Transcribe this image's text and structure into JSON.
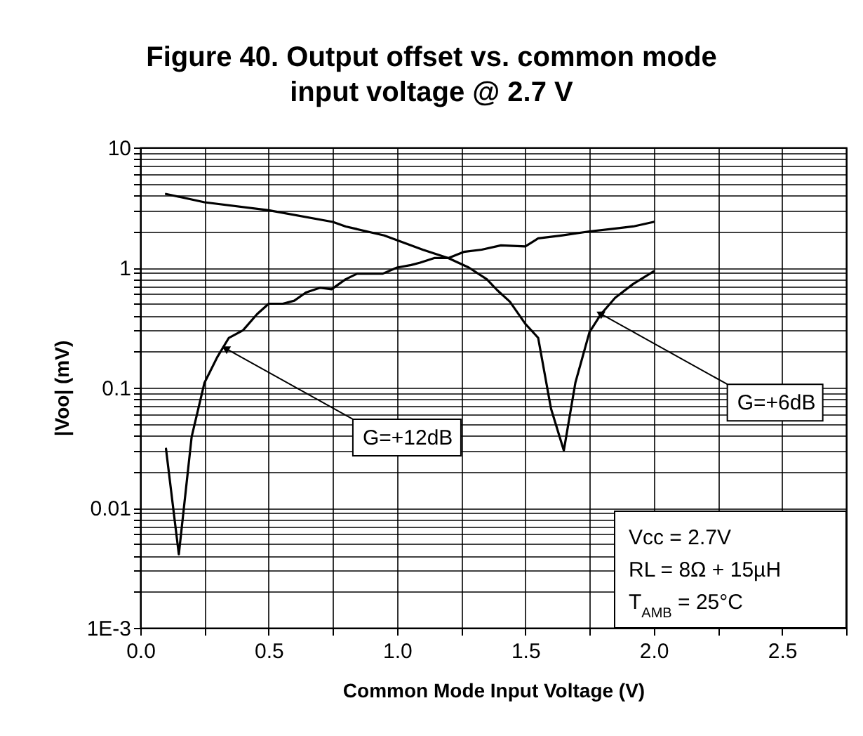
{
  "chart_data": {
    "type": "line",
    "title": "Figure 40. Output offset vs. common mode input voltage @ 2.7 V",
    "xlabel": "Common Mode Input Voltage (V)",
    "ylabel": "|Voo| (mV)",
    "series": [
      {
        "color": "#000000",
        "x": [
          0.1,
          0.25,
          0.5,
          0.75,
          0.8,
          0.95,
          1.1,
          1.2,
          1.28,
          1.35,
          1.39,
          1.44,
          1.5,
          1.55,
          1.6,
          1.65,
          1.695,
          1.75,
          1.795,
          1.85,
          1.92,
          2.0
        ],
        "values": [
          4.1,
          3.5,
          3.0,
          2.4,
          2.2,
          1.85,
          1.41,
          1.2,
          1.0,
          0.8,
          0.65,
          0.52,
          0.34,
          0.26,
          0.067,
          0.03,
          0.11,
          0.29,
          0.41,
          0.56,
          0.73,
          0.93
        ]
      },
      {
        "color": "#000000",
        "x": [
          0.1,
          0.15,
          0.2,
          0.25,
          0.3,
          0.345,
          0.4,
          0.455,
          0.5,
          0.555,
          0.6,
          0.645,
          0.7,
          0.745,
          0.8,
          0.845,
          0.945,
          1.0,
          1.055,
          1.09,
          1.145,
          1.2,
          1.26,
          1.33,
          1.405,
          1.5,
          1.55,
          1.64,
          1.75,
          1.84,
          1.92,
          2.0
        ],
        "values": [
          0.031,
          0.0041,
          0.039,
          0.11,
          0.18,
          0.26,
          0.3,
          0.41,
          0.5,
          0.5,
          0.53,
          0.62,
          0.68,
          0.66,
          0.8,
          0.89,
          0.89,
          1.0,
          1.05,
          1.1,
          1.2,
          1.2,
          1.35,
          1.41,
          1.53,
          1.5,
          1.75,
          1.85,
          2.0,
          2.1,
          2.2,
          2.4
        ]
      }
    ],
    "xlim": [
      0,
      2.75
    ],
    "xticks": [
      {
        "value": 0,
        "label": "0.0"
      },
      {
        "value": 0.25,
        "label": null
      },
      0.5,
      {
        "value": 0.75,
        "label": null
      },
      {
        "value": 1,
        "label": "1.0"
      },
      {
        "value": 1.25,
        "label": null
      },
      1.5,
      {
        "value": 1.75,
        "label": null
      },
      {
        "value": 2,
        "label": "2.0"
      },
      {
        "value": 2.25,
        "label": null
      },
      2.5,
      {
        "value": 2.75,
        "label": null
      }
    ],
    "ylim": [
      0.001,
      10
    ],
    "log": true,
    "yticks": [
      {
        "value": 0.001,
        "label": "1E-3"
      },
      {
        "value": 0.002,
        "label": null
      },
      {
        "value": 0.003,
        "label": null
      },
      {
        "value": 0.004,
        "label": null
      },
      {
        "value": 0.005,
        "label": null
      },
      {
        "value": 0.006,
        "label": null
      },
      {
        "value": 0.007,
        "label": null
      },
      {
        "value": 0.008,
        "label": null
      },
      {
        "value": 0.009,
        "label": null
      },
      0.01,
      {
        "value": 0.02,
        "label": null
      },
      {
        "value": 0.03,
        "label": null
      },
      {
        "value": 0.04,
        "label": null
      },
      {
        "value": 0.05,
        "label": null
      },
      {
        "value": 0.06,
        "label": null
      },
      {
        "value": 0.07,
        "label": null
      },
      {
        "value": 0.08,
        "label": null
      },
      {
        "value": 0.09,
        "label": null
      },
      0.1,
      {
        "value": 0.2,
        "label": null
      },
      {
        "value": 0.3,
        "label": null
      },
      {
        "value": 0.4,
        "label": null
      },
      {
        "value": 0.5,
        "label": null
      },
      {
        "value": 0.6,
        "label": null
      },
      {
        "value": 0.7,
        "label": null
      },
      {
        "value": 0.8,
        "label": null
      },
      {
        "value": 0.9,
        "label": null
      },
      1,
      {
        "value": 2,
        "label": null
      },
      {
        "value": 3,
        "label": null
      },
      {
        "value": 4,
        "label": null
      },
      {
        "value": 5,
        "label": null
      },
      {
        "value": 6,
        "label": null
      },
      {
        "value": 7,
        "label": null
      },
      {
        "value": 8,
        "label": null
      },
      {
        "value": 9,
        "label": null
      },
      10
    ],
    "grid": true,
    "marker": "none",
    "line_style": "solid",
    "annotations": [
      {
        "text": "G=+12dB",
        "x": 0.336,
        "y": 0.21
      },
      {
        "text": "G=+6dB",
        "x": 1.795,
        "y": 0.41
      },
      "Vcc = 2.7V",
      "RL = 8Ω + 15µH",
      "T$_{AMB}$ = 25°C"
    ]
  }
}
